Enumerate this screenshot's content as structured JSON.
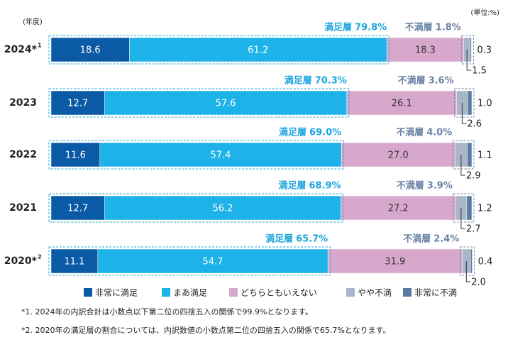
{
  "chart_data": {
    "type": "stacked-bar-horizontal",
    "unit_note": "(単位:%)",
    "category_axis_label": "(年度)",
    "categories": [
      "2024*",
      "2023",
      "2022",
      "2021",
      "2020*"
    ],
    "category_marks": [
      "1",
      null,
      null,
      null,
      "2"
    ],
    "xlim": [
      0,
      100
    ],
    "series": [
      {
        "name": "非常に満足",
        "color": "#0b5aa6",
        "values": [
          18.6,
          12.7,
          11.6,
          12.7,
          11.1
        ]
      },
      {
        "name": "まあ満足",
        "color": "#1db2e8",
        "values": [
          61.2,
          57.6,
          57.4,
          56.2,
          54.7
        ]
      },
      {
        "name": "どちらともいえない",
        "color": "#d8a7cc",
        "values": [
          18.3,
          26.1,
          27.0,
          27.2,
          31.9
        ],
        "value_labels": [
          "18.3",
          "26.1",
          "27.0",
          "27.2",
          "31.9"
        ]
      },
      {
        "name": "やや不満",
        "color": "#a9b5c9",
        "values": [
          1.5,
          2.6,
          2.9,
          2.7,
          2.0
        ],
        "value_labels": [
          "1.5",
          "2.6",
          "2.9",
          "2.7",
          "2.0"
        ]
      },
      {
        "name": "非常に不満",
        "color": "#5a7aa0",
        "values": [
          0.3,
          1.0,
          1.1,
          1.2,
          0.4
        ],
        "value_labels": [
          "0.3",
          "1.0",
          "1.1",
          "1.2",
          "0.4"
        ]
      }
    ],
    "groups": [
      {
        "name": "満足層",
        "color": "#1fa6de",
        "values": [
          79.8,
          70.3,
          69.0,
          68.9,
          65.7
        ],
        "value_labels": [
          "79.8%",
          "70.3%",
          "69.0%",
          "68.9%",
          "65.7%"
        ]
      },
      {
        "name": "不満層",
        "color": "#6c84a6",
        "values": [
          1.8,
          3.6,
          4.0,
          3.9,
          2.4
        ],
        "value_labels": [
          "1.8%",
          "3.6%",
          "4.0%",
          "3.9%",
          "2.4%"
        ]
      }
    ],
    "footnotes": [
      "*1. 2024年の内訳合計は小数点以下第二位の四捨五入の関係で99.9%となります。",
      "*2. 2020年の満足層の割合については、内訳数値の小数点第二位の四捨五入の関係で65.7%となります。"
    ]
  }
}
